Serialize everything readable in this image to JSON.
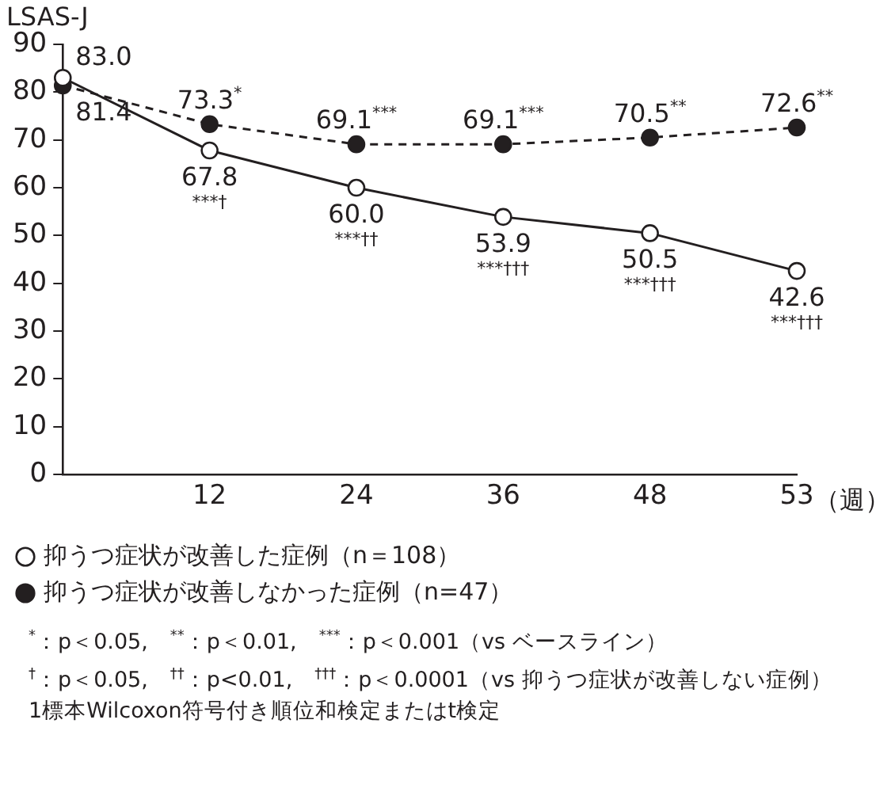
{
  "chart_data": {
    "type": "line",
    "ylabel": "LSAS-J",
    "xlabel": "（週）",
    "categories": [
      null,
      "12",
      "24",
      "36",
      "48",
      "53"
    ],
    "series": [
      {
        "name": "抑うつ症状が改善した症例（n＝108）",
        "color": "#231f20",
        "line_style": "solid",
        "values": [
          83.0,
          67.8,
          60.0,
          53.9,
          50.5,
          42.6
        ],
        "value_labels": [
          "83.0",
          "67.8\n***†",
          "60.0\n***††",
          "53.9\n***†††",
          "50.5\n***†††",
          "42.6\n***†††"
        ]
      },
      {
        "name": "抑うつ症状が改善しなかった症例（n=47）",
        "color": "#231f20",
        "line_style": "dashed",
        "values": [
          81.4,
          73.3,
          69.1,
          69.1,
          70.5,
          72.6
        ],
        "value_labels": [
          "81.4",
          "73.3$^{*}$",
          "69.1$^{***}$",
          "69.1$^{***}$",
          "70.5$^{**}$",
          "72.6$^{**}$"
        ]
      }
    ],
    "ylim": [
      0,
      90
    ],
    "yticks": [
      0,
      10,
      20,
      30,
      40,
      50,
      60,
      70,
      80,
      90
    ],
    "grid": false,
    "legend": "bottom",
    "marker": "circle",
    "annotations": [
      "$^{*}$：p＜0.05,　$^{**}$：p＜0.01,　$^{***}$：p＜0.001（vs ベースライン）",
      "$^{†}$：p＜0.05,　$^{††}$：p<0.01,　$^{†††}$：p＜0.0001（vs 抑うつ症状が改善しない症例）",
      "1標本Wilcoxon符号付き順位和検定またはt検定"
    ]
  }
}
